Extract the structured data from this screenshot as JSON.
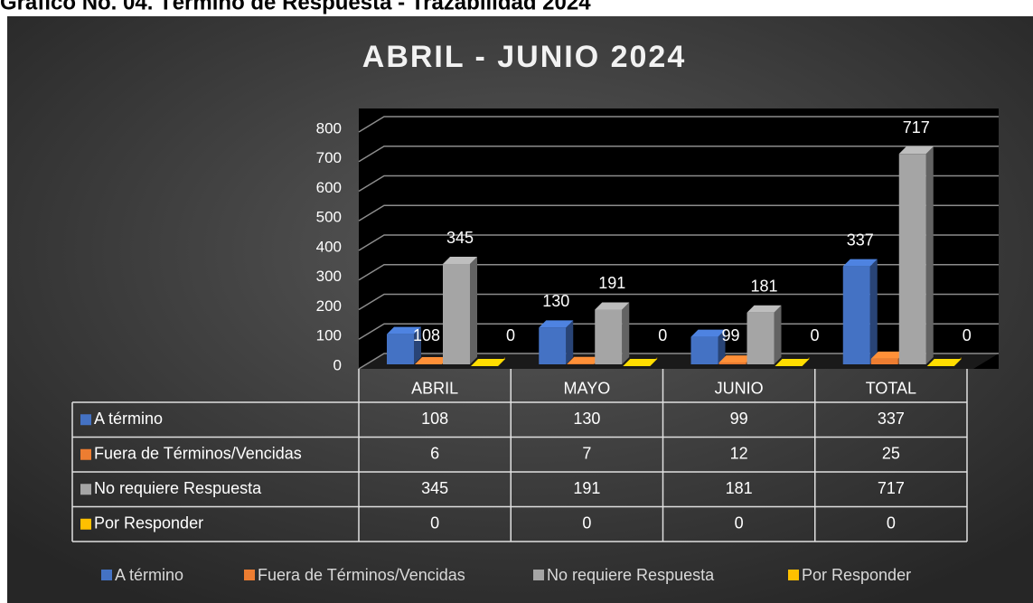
{
  "heading": "Gráfico No. 04. Término de Respuesta - Trazabilidad 2024",
  "chart_data": {
    "type": "bar3d",
    "title": "ABRIL - JUNIO 2024",
    "categories": [
      "ABRIL",
      "MAYO",
      "JUNIO",
      "TOTAL"
    ],
    "series": [
      {
        "name": "A término",
        "color": "#4472c4",
        "values": [
          108,
          130,
          99,
          337
        ]
      },
      {
        "name": "Fuera de Términos/Vencidas",
        "color": "#ed7d31",
        "values": [
          6,
          7,
          12,
          25
        ]
      },
      {
        "name": "No requiere Respuesta",
        "color": "#a5a5a5",
        "values": [
          345,
          191,
          181,
          717
        ]
      },
      {
        "name": "Por Responder",
        "color": "#ffc000",
        "values": [
          0,
          0,
          0,
          0
        ]
      }
    ],
    "ylim": [
      0,
      800
    ],
    "yticks": [
      0,
      100,
      200,
      300,
      400,
      500,
      600,
      700,
      800
    ],
    "grid": true,
    "legend": "bottom",
    "data_table": true
  }
}
